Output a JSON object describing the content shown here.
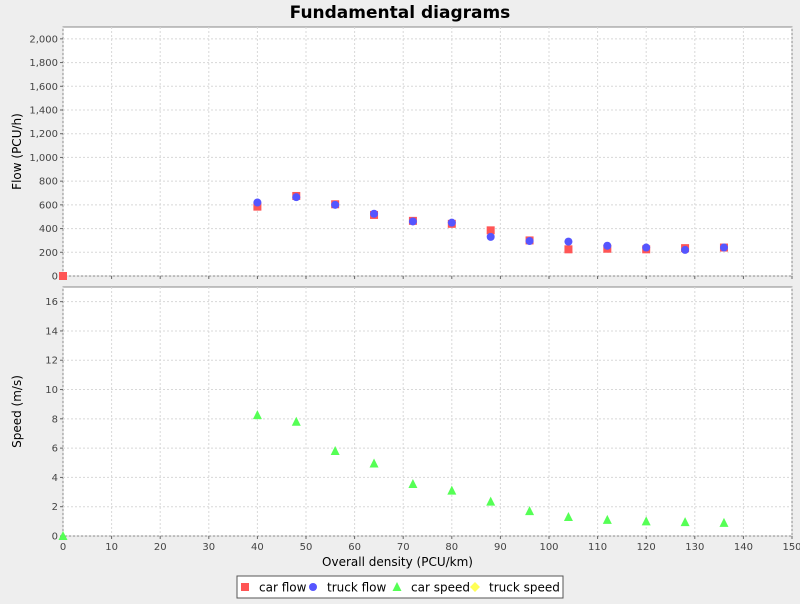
{
  "title": "Fundamental diagrams",
  "colors": {
    "car_flow": "#ff5555",
    "truck_flow": "#5555ff",
    "car_speed": "#55ff55",
    "truck_speed": "#ffff55",
    "plot_bg": "#ffffff",
    "page_bg": "#eeeeee",
    "grid": "#d8d8d8"
  },
  "legend_items": [
    {
      "name": "car flow",
      "marker": "square",
      "color": "#ff5555"
    },
    {
      "name": "truck flow",
      "marker": "circle",
      "color": "#5555ff"
    },
    {
      "name": "car speed",
      "marker": "triangle",
      "color": "#55ff55"
    },
    {
      "name": "truck speed",
      "marker": "diamond",
      "color": "#ffff55"
    }
  ],
  "chart_data": [
    {
      "type": "scatter",
      "title": "Fundamental diagrams",
      "xlabel": "Overall density (PCU/km)",
      "ylabel": "Flow (PCU/h)",
      "xlim": [
        0,
        150
      ],
      "ylim": [
        0,
        2100
      ],
      "xticks": [
        0,
        10,
        20,
        30,
        40,
        50,
        60,
        70,
        80,
        90,
        100,
        110,
        120,
        130,
        140,
        150
      ],
      "yticks": [
        0,
        200,
        400,
        600,
        800,
        1000,
        1200,
        1400,
        1600,
        1800,
        2000
      ],
      "ytick_labels": [
        "0",
        "200",
        "400",
        "600",
        "800",
        "1,000",
        "1,200",
        "1,400",
        "1,600",
        "1,800",
        "2,000"
      ],
      "grid": true,
      "legend_position": "bottom",
      "series": [
        {
          "name": "car flow",
          "marker": "square",
          "color": "#ff5555",
          "x": [
            0,
            40,
            48,
            56,
            64,
            72,
            80,
            88,
            96,
            104,
            112,
            120,
            128,
            136
          ],
          "y": [
            0,
            585,
            675,
            605,
            515,
            465,
            440,
            385,
            300,
            225,
            230,
            225,
            235,
            240
          ]
        },
        {
          "name": "truck flow",
          "marker": "circle",
          "color": "#5555ff",
          "x": [
            40,
            48,
            56,
            64,
            72,
            80,
            88,
            96,
            104,
            112,
            120,
            128,
            136
          ],
          "y": [
            620,
            665,
            600,
            525,
            460,
            450,
            330,
            295,
            290,
            255,
            240,
            220,
            240
          ]
        }
      ]
    },
    {
      "type": "scatter",
      "xlabel": "Overall density (PCU/km)",
      "ylabel": "Speed (m/s)",
      "xlim": [
        0,
        150
      ],
      "ylim": [
        0,
        17
      ],
      "xticks": [
        0,
        10,
        20,
        30,
        40,
        50,
        60,
        70,
        80,
        90,
        100,
        110,
        120,
        130,
        140,
        150
      ],
      "yticks": [
        0,
        2,
        4,
        6,
        8,
        10,
        12,
        14,
        16
      ],
      "ytick_labels": [
        "0",
        "2",
        "4",
        "6",
        "8",
        "10",
        "12",
        "14",
        "16"
      ],
      "grid": true,
      "series": [
        {
          "name": "car speed",
          "marker": "triangle",
          "color": "#55ff55",
          "x": [
            0,
            40,
            48,
            56,
            64,
            72,
            80,
            88,
            96,
            104,
            112,
            120,
            128,
            136
          ],
          "y": [
            0,
            8.25,
            7.8,
            5.8,
            4.95,
            3.55,
            3.1,
            2.35,
            1.7,
            1.3,
            1.1,
            1.0,
            0.95,
            0.9
          ]
        },
        {
          "name": "truck speed",
          "marker": "diamond",
          "color": "#ffff55",
          "x": [],
          "y": []
        }
      ]
    }
  ]
}
